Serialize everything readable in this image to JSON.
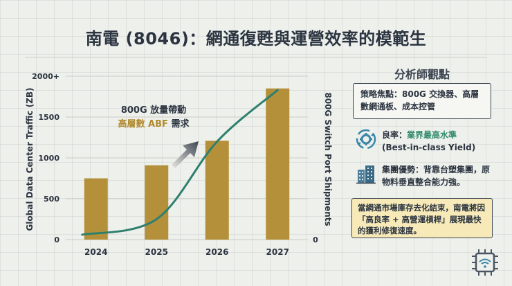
{
  "title": "南電 (8046)：網通復甦與運營效率的模範生",
  "chart_data": {
    "type": "bar",
    "categories": [
      "2024",
      "2025",
      "2026",
      "2027"
    ],
    "series": [
      {
        "values": [
          750,
          910,
          1210,
          1850
        ],
        "color": "#b5903a"
      },
      {
        "values": [
          60,
          250,
          1200,
          1830
        ],
        "color": "#2e7f6e"
      }
    ],
    "ylim": [
      0,
      2000
    ],
    "y_ticks": [
      "0",
      "500",
      "1000",
      "1500",
      "2000+"
    ],
    "y_tick_values": [
      0,
      500,
      1000,
      1500,
      2000
    ],
    "ylabel": "Global Data Center Traffic (ZB)",
    "y2label": "800G Switch Port Shipments",
    "y2_tick": "0",
    "annotation": {
      "line1": "800G 放量帶動",
      "line2_highlight": "高層數 ABF",
      "line2_rest": " 需求"
    }
  },
  "panel": {
    "title": "分析師觀點",
    "focus": "策略焦點：800G 交換器、高層數網通板、成本控管",
    "yield_label": "良率：",
    "yield_value": "業界最高水準",
    "yield_en": "(Best-in-class Yield)",
    "group": "集團優勢：背靠台塑集團，原物料垂直整合能力強。",
    "note": "當網通市場庫存去化結束，南電將因「高良率 + 高營運槓桿」展現最快的獲利修復速度。"
  },
  "icons": {
    "yield": "gear-arrows-icon",
    "group": "buildings-icon",
    "corner": "chip-wifi-icon"
  },
  "colors": {
    "bar": "#b5903a",
    "line": "#2e7f6e",
    "accent_gold": "#b08a2e",
    "accent_green": "#2e8a6a",
    "note_bg": "#f7e9b8"
  }
}
